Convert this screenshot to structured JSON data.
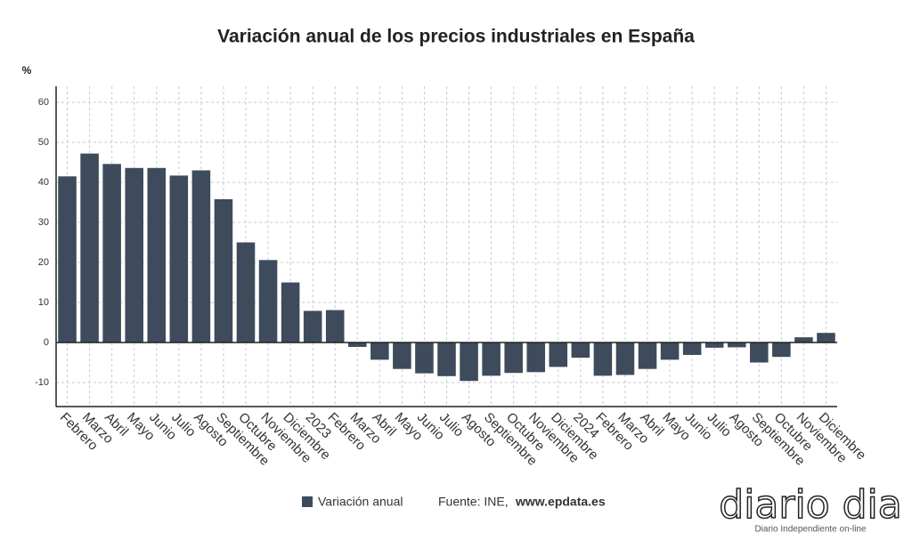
{
  "chart_data": {
    "type": "bar",
    "title": "Variación anual de los precios industriales en España",
    "y_label": "%",
    "categories": [
      "Febrero",
      "Marzo",
      "Abril",
      "Mayo",
      "Junio",
      "Julio",
      "Agosto",
      "Septiembre",
      "Octubre",
      "Noviembre",
      "Diciembre",
      "2023",
      "Febrero",
      "Marzo",
      "Abril",
      "Mayo",
      "Junio",
      "Julio",
      "Agosto",
      "Septiembre",
      "Octubre",
      "Noviembre",
      "Diciembre",
      "2024",
      "Febrero",
      "Marzo",
      "Abril",
      "Mayo",
      "Junio",
      "Julio",
      "Agosto",
      "Septiembre",
      "Octubre",
      "Noviembre",
      "Diciembre"
    ],
    "series": [
      {
        "name": "Variación anual",
        "color": "#3d4b5c",
        "values": [
          41.5,
          47.2,
          44.6,
          43.6,
          43.6,
          41.7,
          43.0,
          35.8,
          25.0,
          20.6,
          15.0,
          7.9,
          8.1,
          -1.1,
          -4.3,
          -6.6,
          -7.7,
          -8.4,
          -9.6,
          -8.3,
          -7.6,
          -7.4,
          -6.1,
          -3.8,
          -8.3,
          -8.1,
          -6.6,
          -4.3,
          -3.1,
          -1.3,
          -1.2,
          -5.0,
          -3.6,
          1.3,
          2.4
        ]
      }
    ],
    "ylim": [
      -16,
      64
    ],
    "yticks": [
      -10,
      0,
      10,
      20,
      30,
      40,
      50,
      60
    ],
    "grid": true,
    "source": "Fuente: INE,",
    "source_site": "www.epdata.es"
  },
  "watermark": {
    "name": "diario dia",
    "tagline": "Diario Independiente on-line"
  }
}
